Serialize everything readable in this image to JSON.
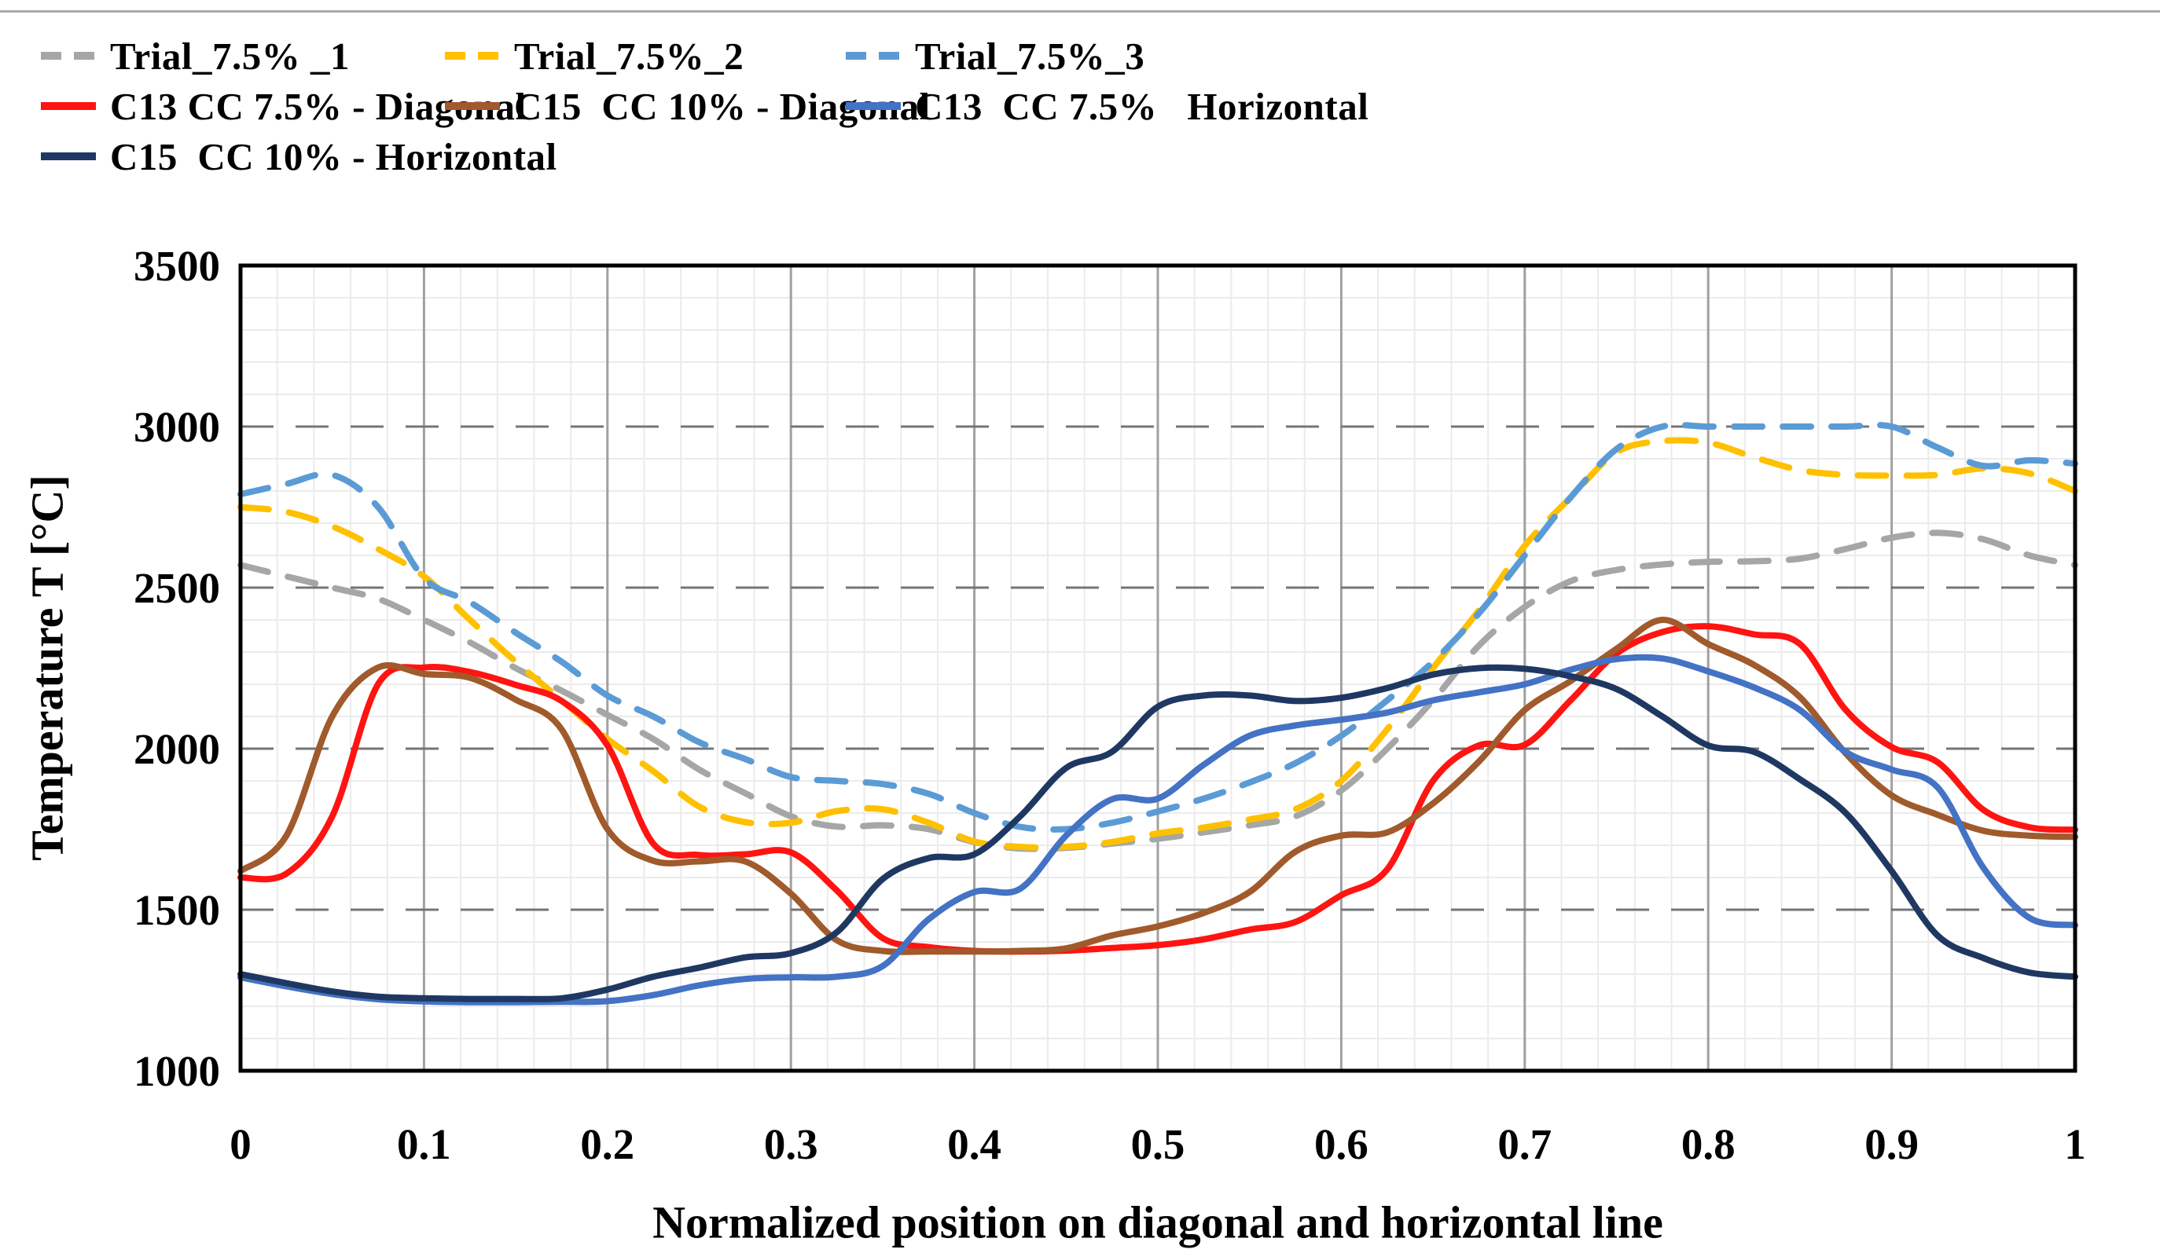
{
  "page": {
    "background": "#ffffff",
    "top_rule_color": "#a9a9a9"
  },
  "chart_data": {
    "type": "line",
    "title": "",
    "xlabel": "Normalized position on diagonal and horizontal line",
    "ylabel": "Temperature  T [°C]",
    "xlim": [
      0,
      1
    ],
    "ylim": [
      1000,
      3500
    ],
    "grid": true,
    "legend_position": "top",
    "xticks": {
      "values": [
        0,
        0.1,
        0.2,
        0.3,
        0.4,
        0.5,
        0.6,
        0.7,
        0.8,
        0.9,
        1
      ],
      "labels": [
        "0",
        "0.1",
        "0.2",
        "0.3",
        "0.4",
        "0.5",
        "0.6",
        "0.7",
        "0.8",
        "0.9",
        "1"
      ]
    },
    "yticks": {
      "values": [
        3500,
        3000,
        2500,
        2000,
        1500,
        1000
      ],
      "labels": [
        "3500",
        "3000",
        "2500",
        "2000",
        "1500",
        "1000"
      ]
    },
    "minor_x_step": 0.02,
    "minor_y_step": 100,
    "x": [
      0,
      0.025,
      0.05,
      0.075,
      0.1,
      0.125,
      0.15,
      0.175,
      0.2,
      0.225,
      0.25,
      0.275,
      0.3,
      0.325,
      0.35,
      0.375,
      0.4,
      0.425,
      0.45,
      0.475,
      0.5,
      0.525,
      0.55,
      0.575,
      0.6,
      0.625,
      0.65,
      0.675,
      0.7,
      0.725,
      0.75,
      0.775,
      0.8,
      0.825,
      0.85,
      0.875,
      0.9,
      0.925,
      0.95,
      0.975,
      1
    ],
    "series": [
      {
        "name": "Trial_7.5% _1",
        "color": "#a6a6a6",
        "dash": true,
        "values": [
          2570,
          2535,
          2500,
          2465,
          2400,
          2330,
          2250,
          2180,
          2105,
          2030,
          1935,
          1862,
          1790,
          1758,
          1762,
          1750,
          1710,
          1690,
          1692,
          1705,
          1720,
          1740,
          1762,
          1790,
          1870,
          2000,
          2150,
          2320,
          2440,
          2520,
          2555,
          2572,
          2580,
          2582,
          2590,
          2620,
          2655,
          2670,
          2650,
          2600,
          2570
        ]
      },
      {
        "name": "Trial_7.5%_2",
        "color": "#ffc000",
        "dash": true,
        "values": [
          2750,
          2735,
          2690,
          2620,
          2535,
          2400,
          2270,
          2150,
          2030,
          1930,
          1820,
          1772,
          1770,
          1806,
          1812,
          1770,
          1712,
          1695,
          1695,
          1710,
          1737,
          1755,
          1780,
          1812,
          1900,
          2060,
          2250,
          2430,
          2630,
          2780,
          2920,
          2955,
          2950,
          2905,
          2865,
          2850,
          2848,
          2850,
          2870,
          2855,
          2800
        ]
      },
      {
        "name": "Trial_7.5%_3",
        "color": "#5b9bd5",
        "dash": true,
        "values": [
          2790,
          2822,
          2850,
          2750,
          2530,
          2455,
          2360,
          2270,
          2165,
          2100,
          2020,
          1968,
          1912,
          1900,
          1890,
          1860,
          1800,
          1757,
          1750,
          1770,
          1805,
          1845,
          1895,
          1955,
          2040,
          2150,
          2270,
          2420,
          2600,
          2780,
          2930,
          3000,
          3000,
          3000,
          3000,
          3000,
          3000,
          2935,
          2878,
          2895,
          2885
        ]
      },
      {
        "name": "C13 CC 7.5% - Diagonal",
        "color": "#ff1411",
        "dash": false,
        "values": [
          1600,
          1612,
          1790,
          2200,
          2252,
          2238,
          2198,
          2148,
          2010,
          1705,
          1670,
          1672,
          1678,
          1560,
          1412,
          1384,
          1372,
          1370,
          1373,
          1381,
          1390,
          1408,
          1438,
          1462,
          1545,
          1625,
          1900,
          2010,
          2012,
          2150,
          2295,
          2362,
          2380,
          2355,
          2325,
          2120,
          2005,
          1958,
          1810,
          1756,
          1748
        ]
      },
      {
        "name": "C15  CC 10% - Diagonal",
        "color": "#a05a2b",
        "dash": false,
        "values": [
          1620,
          1730,
          2100,
          2252,
          2232,
          2220,
          2152,
          2060,
          1750,
          1652,
          1650,
          1650,
          1550,
          1405,
          1372,
          1370,
          1370,
          1372,
          1380,
          1420,
          1448,
          1490,
          1555,
          1680,
          1730,
          1740,
          1830,
          1960,
          2120,
          2210,
          2310,
          2400,
          2325,
          2260,
          2160,
          1985,
          1855,
          1795,
          1745,
          1730,
          1726
        ]
      },
      {
        "name": "C13  CC 7.5%   Horizontal",
        "color": "#4472c4",
        "dash": false,
        "values": [
          1290,
          1262,
          1238,
          1222,
          1215,
          1213,
          1213,
          1214,
          1216,
          1235,
          1265,
          1285,
          1290,
          1292,
          1325,
          1470,
          1555,
          1565,
          1730,
          1843,
          1845,
          1950,
          2040,
          2072,
          2090,
          2112,
          2150,
          2175,
          2200,
          2245,
          2278,
          2280,
          2240,
          2190,
          2120,
          1990,
          1935,
          1880,
          1630,
          1475,
          1452
        ]
      },
      {
        "name": "C15  CC 10% - Horizontal",
        "color": "#1e3862",
        "dash": false,
        "values": [
          1300,
          1272,
          1246,
          1230,
          1225,
          1223,
          1223,
          1225,
          1252,
          1292,
          1320,
          1352,
          1365,
          1430,
          1595,
          1660,
          1672,
          1790,
          1940,
          1990,
          2130,
          2165,
          2165,
          2148,
          2158,
          2188,
          2230,
          2250,
          2248,
          2225,
          2185,
          2100,
          2010,
          1990,
          1905,
          1800,
          1620,
          1420,
          1350,
          1305,
          1292
        ]
      }
    ]
  }
}
